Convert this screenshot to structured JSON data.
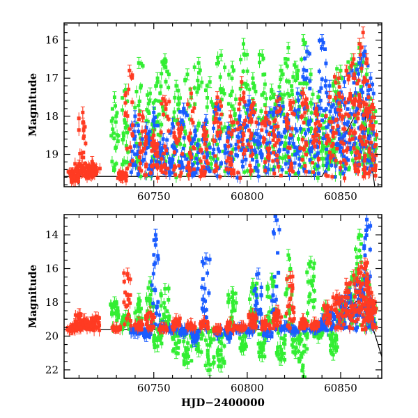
{
  "chart_data": [
    {
      "type": "scatter",
      "ylabel": "Magnitude",
      "xlabel": "",
      "xlim": [
        60702,
        60872
      ],
      "ylim": [
        19.85,
        15.55
      ],
      "y_inverted": true,
      "xticks": [
        60750,
        60800,
        60850
      ],
      "yticks": [
        16,
        17,
        18,
        19
      ],
      "errorbars": true,
      "grid": false,
      "series_colors": {
        "green": "#33ee33",
        "blue": "#1a5cff",
        "red": "#ff3b22"
      },
      "series": [
        {
          "color": "green",
          "values": [
            [
              60729,
              17.5
            ],
            [
              60735,
              17.3
            ],
            [
              60742,
              16.6
            ],
            [
              60748,
              17.4
            ],
            [
              60752,
              17.0
            ],
            [
              60756,
              16.5
            ],
            [
              60762,
              17.2
            ],
            [
              60768,
              16.9
            ],
            [
              60774,
              16.6
            ],
            [
              60780,
              17.1
            ],
            [
              60786,
              16.4
            ],
            [
              60792,
              16.7
            ],
            [
              60798,
              16.1
            ],
            [
              60803,
              17.0
            ],
            [
              60808,
              16.4
            ],
            [
              60813,
              17.3
            ],
            [
              60818,
              16.8
            ],
            [
              60822,
              16.2
            ],
            [
              60826,
              16.7
            ],
            [
              60830,
              16.0
            ],
            [
              60834,
              16.9
            ],
            [
              60838,
              17.5
            ],
            [
              60842,
              18.0
            ],
            [
              60846,
              17.2
            ],
            [
              60850,
              16.8
            ],
            [
              60856,
              16.5
            ],
            [
              60860,
              16.2
            ],
            [
              60864,
              16.9
            ],
            [
              60867,
              17.8
            ]
          ]
        },
        {
          "color": "blue",
          "values": [
            [
              60740,
              18.0
            ],
            [
              60746,
              18.3
            ],
            [
              60750,
              17.9
            ],
            [
              60755,
              18.6
            ],
            [
              60760,
              18.2
            ],
            [
              60766,
              17.8
            ],
            [
              60772,
              18.4
            ],
            [
              60778,
              18.1
            ],
            [
              60784,
              17.7
            ],
            [
              60790,
              18.3
            ],
            [
              60796,
              18.0
            ],
            [
              60801,
              17.6
            ],
            [
              60806,
              18.2
            ],
            [
              60812,
              17.9
            ],
            [
              60817,
              17.5
            ],
            [
              60822,
              18.1
            ],
            [
              60827,
              17.4
            ],
            [
              60832,
              16.3
            ],
            [
              60836,
              17.8
            ],
            [
              60840,
              16.0
            ],
            [
              60844,
              17.2
            ],
            [
              60848,
              17.6
            ],
            [
              60852,
              17.1
            ],
            [
              60856,
              16.8
            ],
            [
              60860,
              16.6
            ],
            [
              60863,
              16.3
            ],
            [
              60866,
              17.0
            ]
          ]
        },
        {
          "color": "red",
          "values": [
            [
              60706,
              19.5
            ],
            [
              60708,
              19.7
            ],
            [
              60710,
              19.3
            ],
            [
              60712,
              17.9
            ],
            [
              60715,
              19.5
            ],
            [
              60717,
              19.2
            ],
            [
              60719,
              19.4
            ],
            [
              60733,
              19.6
            ],
            [
              60737,
              16.8
            ],
            [
              60744,
              18.0
            ],
            [
              60750,
              18.5
            ],
            [
              60756,
              17.6
            ],
            [
              60763,
              18.2
            ],
            [
              60770,
              17.4
            ],
            [
              60777,
              18.3
            ],
            [
              60784,
              17.5
            ],
            [
              60791,
              18.0
            ],
            [
              60797,
              17.1
            ],
            [
              60803,
              17.7
            ],
            [
              60810,
              17.9
            ],
            [
              60816,
              17.6
            ],
            [
              60823,
              17.7
            ],
            [
              60830,
              17.4
            ],
            [
              60837,
              17.8
            ],
            [
              60844,
              17.5
            ],
            [
              60849,
              17.0
            ],
            [
              60853,
              16.8
            ],
            [
              60857,
              16.5
            ],
            [
              60860,
              16.1
            ],
            [
              60862,
              15.8
            ],
            [
              60864,
              16.5
            ],
            [
              60867,
              17.7
            ]
          ]
        }
      ]
    },
    {
      "type": "scatter",
      "ylabel": "Magnitude",
      "xlabel": "HJD−2400000",
      "xlim": [
        60702,
        60872
      ],
      "ylim": [
        22.5,
        12.8
      ],
      "y_inverted": true,
      "xticks": [
        60750,
        60800,
        60850
      ],
      "yticks": [
        14,
        16,
        18,
        20,
        22
      ],
      "errorbars": true,
      "grid": false,
      "series": [
        {
          "color": "green",
          "values": [
            [
              60729,
              18.0
            ],
            [
              60735,
              18.8
            ],
            [
              60742,
              17.8
            ],
            [
              60748,
              16.8
            ],
            [
              60752,
              20.6
            ],
            [
              60756,
              17.2
            ],
            [
              60762,
              21.0
            ],
            [
              60768,
              21.6
            ],
            [
              60774,
              20.9
            ],
            [
              60780,
              22.0
            ],
            [
              60786,
              21.8
            ],
            [
              60792,
              17.4
            ],
            [
              60798,
              20.8
            ],
            [
              60803,
              16.9
            ],
            [
              60808,
              21.2
            ],
            [
              60813,
              16.6
            ],
            [
              60818,
              21.4
            ],
            [
              60822,
              15.2
            ],
            [
              60826,
              21.0
            ],
            [
              60830,
              22.4
            ],
            [
              60834,
              15.6
            ],
            [
              60838,
              20.1
            ],
            [
              60842,
              18.2
            ],
            [
              60846,
              21.1
            ],
            [
              60850,
              17.9
            ],
            [
              60856,
              16.5
            ],
            [
              60860,
              14.0
            ],
            [
              60864,
              16.4
            ],
            [
              60867,
              17.9
            ]
          ]
        },
        {
          "color": "blue",
          "values": [
            [
              60740,
              19.8
            ],
            [
              60746,
              20.0
            ],
            [
              60751,
              14.0
            ],
            [
              60755,
              19.4
            ],
            [
              60760,
              19.6
            ],
            [
              60766,
              19.8
            ],
            [
              60772,
              20.3
            ],
            [
              60778,
              15.4
            ],
            [
              60784,
              19.9
            ],
            [
              60790,
              20.1
            ],
            [
              60796,
              19.5
            ],
            [
              60801,
              19.8
            ],
            [
              60806,
              16.3
            ],
            [
              60811,
              20.0
            ],
            [
              60815,
              12.9
            ],
            [
              60820,
              19.4
            ],
            [
              60825,
              19.7
            ],
            [
              60830,
              19.3
            ],
            [
              60836,
              19.6
            ],
            [
              60840,
              19.0
            ],
            [
              60845,
              18.6
            ],
            [
              60850,
              17.9
            ],
            [
              60855,
              17.5
            ],
            [
              60860,
              16.9
            ],
            [
              60864,
              13.1
            ],
            [
              60866,
              17.8
            ]
          ]
        },
        {
          "color": "red",
          "values": [
            [
              60706,
              19.6
            ],
            [
              60708,
              19.3
            ],
            [
              60710,
              18.7
            ],
            [
              60713,
              19.0
            ],
            [
              60716,
              19.2
            ],
            [
              60719,
              18.9
            ],
            [
              60730,
              19.5
            ],
            [
              60736,
              16.3
            ],
            [
              60742,
              19.2
            ],
            [
              60748,
              18.6
            ],
            [
              60755,
              19.5
            ],
            [
              60762,
              19.0
            ],
            [
              60770,
              19.3
            ],
            [
              60777,
              19.1
            ],
            [
              60784,
              19.6
            ],
            [
              60791,
              19.2
            ],
            [
              60797,
              19.4
            ],
            [
              60803,
              18.7
            ],
            [
              60810,
              19.1
            ],
            [
              60816,
              18.5
            ],
            [
              60823,
              16.5
            ],
            [
              60830,
              19.0
            ],
            [
              60836,
              19.2
            ],
            [
              60843,
              18.2
            ],
            [
              60848,
              17.6
            ],
            [
              60853,
              16.9
            ],
            [
              60857,
              16.4
            ],
            [
              60861,
              15.9
            ],
            [
              60863,
              15.7
            ],
            [
              60865,
              16.8
            ],
            [
              60867,
              17.9
            ]
          ]
        }
      ]
    }
  ]
}
